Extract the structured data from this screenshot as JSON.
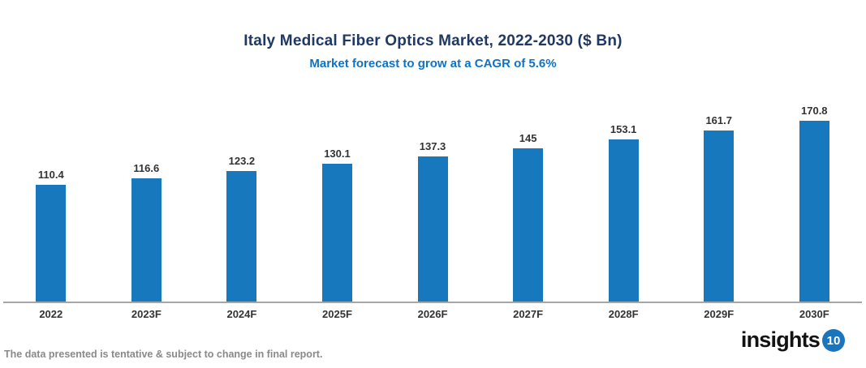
{
  "header": {
    "title": "Italy Medical Fiber Optics Market, 2022-2030 ($ Bn)",
    "subtitle": "Market forecast to grow at a CAGR of 5.6%"
  },
  "chart_data": {
    "type": "bar",
    "categories": [
      "2022",
      "2023F",
      "2024F",
      "2025F",
      "2026F",
      "2027F",
      "2028F",
      "2029F",
      "2030F"
    ],
    "values": [
      110.4,
      116.6,
      123.2,
      130.1,
      137.3,
      145,
      153.1,
      161.7,
      170.8
    ],
    "title": "Italy Medical Fiber Optics Market, 2022-2030 ($ Bn)",
    "subtitle": "Market forecast to grow at a CAGR of 5.6%",
    "xlabel": "",
    "ylabel": "",
    "ylim": [
      0,
      185
    ],
    "grid": false,
    "legend": false,
    "data_labels": true,
    "bar_color": "#1878be",
    "axis_line_color": "#a6a6a6"
  },
  "footer": {
    "disclaimer": "The data presented is tentative & subject to change in final report.",
    "logo_text": "insights",
    "logo_badge": "10"
  },
  "colors": {
    "title": "#1f3864",
    "subtitle": "#0e72c5",
    "bar": "#1878be",
    "axis_line": "#a6a6a6",
    "labels": "#333333",
    "footer_text": "#898989",
    "logo_badge_bg": "#1b75bc"
  }
}
